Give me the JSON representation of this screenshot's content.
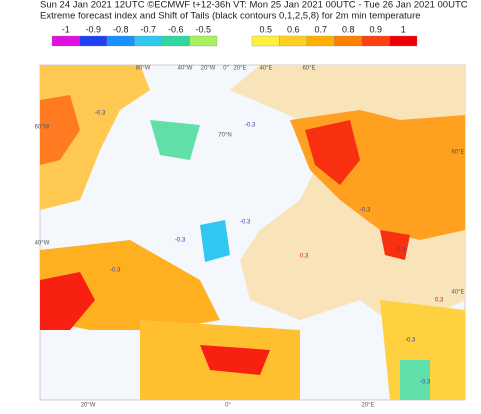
{
  "header": {
    "line1": "Sun 24 Jan 2021 12UTC ©ECMWF t+12-36h  VT: Mon 25 Jan 2021 00UTC - Tue 26 Jan 2021 00UTC",
    "line2": "Extreme forecast index and Shift of Tails (black contours 0,1,2,5,8) for 2m min temperature"
  },
  "legend": {
    "negative": {
      "labels": [
        "-1",
        "-0.9",
        "-0.8",
        "-0.7",
        "-0.6",
        "-0.5"
      ],
      "colors": [
        "#e010e0",
        "#2040f0",
        "#1890ff",
        "#30c8f0",
        "#30d8a0",
        "#a8f060"
      ]
    },
    "positive": {
      "labels": [
        "0.5",
        "0.6",
        "0.7",
        "0.8",
        "0.9",
        "1"
      ],
      "colors": [
        "#fff040",
        "#ffd020",
        "#ffb000",
        "#ff8000",
        "#ff4010",
        "#f00000"
      ]
    }
  },
  "map": {
    "graticule_labels": [
      "80°W",
      "40°W",
      "20°W",
      "0°",
      "20°E",
      "40°E",
      "60°E",
      "60°W",
      "40°W",
      "60°E",
      "40°E",
      "20°W",
      "0°",
      "20°E",
      "70°N"
    ],
    "contour_labels": [
      "-0.3",
      "-0.3",
      "-0.3",
      "-0.3",
      "0.3",
      "-0.3",
      "-0.3",
      "0.3",
      "-0.3",
      "-0.3",
      "-0.3"
    ]
  }
}
